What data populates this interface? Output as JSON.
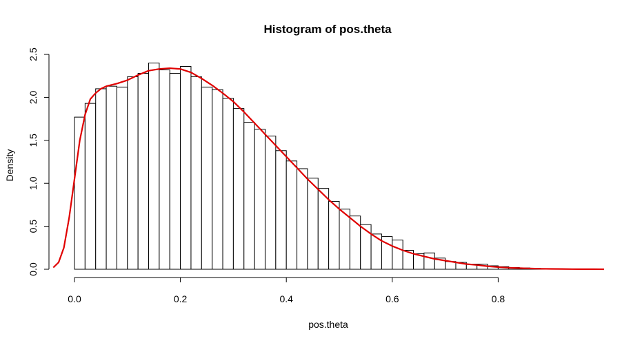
{
  "chart_data": {
    "type": "bar",
    "title": "Histogram of pos.theta",
    "xlabel": "pos.theta",
    "ylabel": "Density",
    "xlim": [
      -0.04,
      1.0
    ],
    "ylim": [
      0,
      2.5
    ],
    "x_ticks": [
      0.0,
      0.2,
      0.4,
      0.6,
      0.8
    ],
    "x_tick_labels": [
      "0.0",
      "0.2",
      "0.4",
      "0.6",
      "0.8"
    ],
    "y_ticks": [
      0.0,
      0.5,
      1.0,
      1.5,
      2.0,
      2.5
    ],
    "y_tick_labels": [
      "0.0",
      "0.5",
      "1.0",
      "1.5",
      "2.0",
      "2.5"
    ],
    "grid": false,
    "bin_width": 0.02,
    "bins_start": 0.0,
    "values": [
      1.77,
      1.93,
      2.1,
      2.13,
      2.12,
      2.24,
      2.28,
      2.4,
      2.32,
      2.28,
      2.36,
      2.24,
      2.12,
      2.09,
      1.99,
      1.87,
      1.71,
      1.63,
      1.55,
      1.38,
      1.26,
      1.17,
      1.06,
      0.94,
      0.79,
      0.7,
      0.62,
      0.52,
      0.41,
      0.38,
      0.34,
      0.22,
      0.18,
      0.19,
      0.13,
      0.09,
      0.08,
      0.06,
      0.06,
      0.04,
      0.03,
      0.02,
      0.015,
      0.01,
      0.005,
      0.005,
      0.003,
      0.002,
      0.001
    ],
    "bar_fill": "#ffffff",
    "bar_stroke": "#000000",
    "density_curve": {
      "color": "#e00000",
      "x": [
        -0.04,
        -0.03,
        -0.02,
        -0.01,
        0.0,
        0.01,
        0.02,
        0.03,
        0.04,
        0.05,
        0.06,
        0.08,
        0.1,
        0.12,
        0.14,
        0.16,
        0.18,
        0.2,
        0.22,
        0.24,
        0.26,
        0.28,
        0.3,
        0.32,
        0.34,
        0.36,
        0.38,
        0.4,
        0.42,
        0.44,
        0.46,
        0.48,
        0.5,
        0.52,
        0.54,
        0.56,
        0.58,
        0.6,
        0.62,
        0.64,
        0.66,
        0.68,
        0.7,
        0.72,
        0.74,
        0.76,
        0.78,
        0.8,
        0.82,
        0.84,
        0.86,
        0.88,
        0.9,
        0.92,
        0.94,
        0.96,
        0.98,
        1.0
      ],
      "y": [
        0.02,
        0.08,
        0.25,
        0.6,
        1.05,
        1.5,
        1.8,
        1.98,
        2.05,
        2.1,
        2.13,
        2.16,
        2.2,
        2.26,
        2.31,
        2.33,
        2.34,
        2.33,
        2.29,
        2.22,
        2.14,
        2.05,
        1.95,
        1.83,
        1.7,
        1.57,
        1.44,
        1.31,
        1.18,
        1.05,
        0.93,
        0.81,
        0.7,
        0.6,
        0.5,
        0.41,
        0.33,
        0.27,
        0.22,
        0.18,
        0.15,
        0.12,
        0.1,
        0.08,
        0.06,
        0.05,
        0.035,
        0.025,
        0.018,
        0.013,
        0.009,
        0.006,
        0.004,
        0.003,
        0.002,
        0.001,
        0.001,
        0.0
      ]
    }
  }
}
